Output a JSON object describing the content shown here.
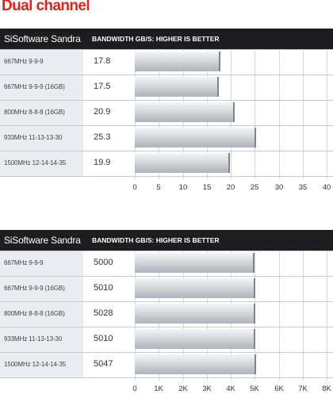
{
  "title": "Dual channel",
  "chart_data": [
    {
      "type": "bar",
      "orientation": "horizontal",
      "tool_label": "SiSoftware Sandra",
      "metric_label": "BANDWIDTH GB/S: HIGHER IS BETTER",
      "categories": [
        "667MHz 9-9-9",
        "667MHz 9-9-9 (16GB)",
        "800MHz 8-8-8 (16GB)",
        "933MHz 11-13-13-30",
        "1500MHz 12-14-14-35"
      ],
      "value_labels": [
        "17.8",
        "17.5",
        "20.9",
        "25.3",
        "19.9"
      ],
      "values": [
        17.8,
        17.5,
        20.9,
        25.3,
        19.9
      ],
      "xlim": [
        0,
        40
      ],
      "ticks": [
        0,
        5,
        10,
        15,
        20,
        25,
        30,
        35,
        40
      ],
      "tick_labels": [
        "0",
        "5",
        "10",
        "15",
        "20",
        "25",
        "30",
        "35",
        "40"
      ],
      "grid": true
    },
    {
      "type": "bar",
      "orientation": "horizontal",
      "tool_label": "SiSoftware Sandra",
      "metric_label": "BANDWIDTH GB/S: HIGHER IS BETTER",
      "categories": [
        "667MHz 9-9-9",
        "667MHz 9-9-9 (16GB)",
        "800MHz 8-8-8 (16GB)",
        "933MHz 11-13-13-30",
        "1500MHz 12-14-14-35"
      ],
      "value_labels": [
        "5000",
        "5010",
        "5028",
        "5010",
        "5047"
      ],
      "values": [
        5000,
        5010,
        5028,
        5010,
        5047
      ],
      "xlim": [
        0,
        8000
      ],
      "ticks": [
        0,
        1000,
        2000,
        3000,
        4000,
        5000,
        6000,
        7000,
        8000
      ],
      "tick_labels": [
        "0",
        "1K",
        "2K",
        "3K",
        "4K",
        "5K",
        "6K",
        "7K",
        "8K"
      ],
      "grid": true
    }
  ]
}
